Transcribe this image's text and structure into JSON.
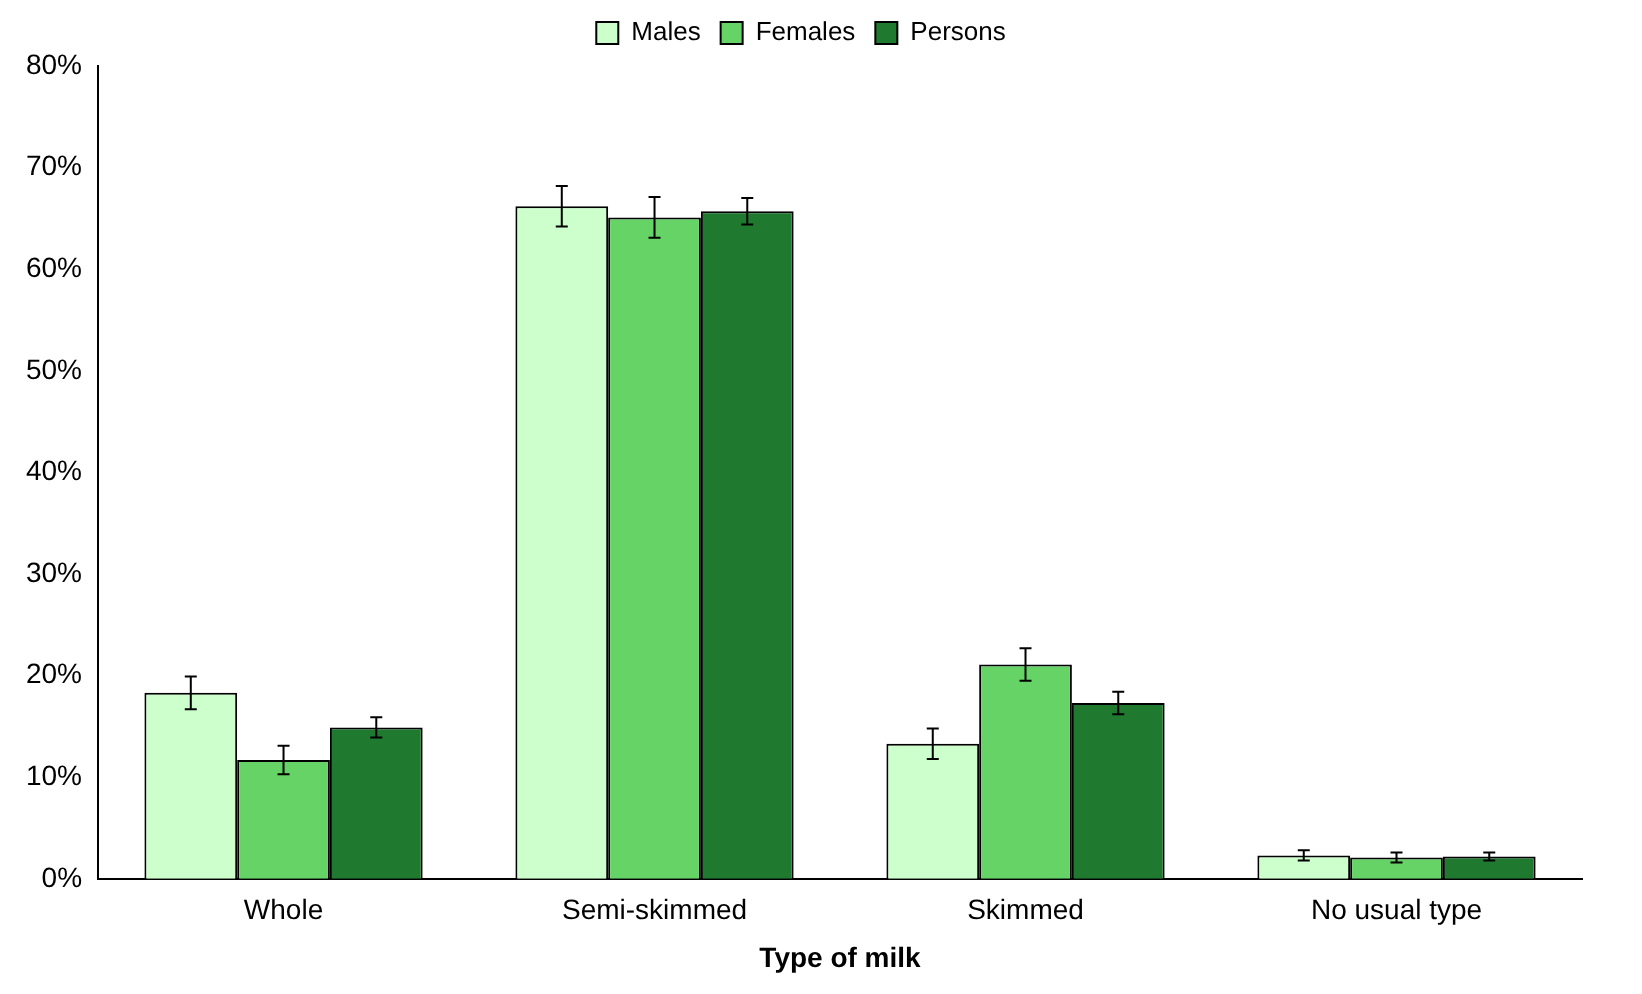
{
  "chart_data": {
    "type": "bar",
    "xlabel": "Type of milk",
    "categories": [
      "Whole",
      "Semi-skimmed",
      "Skimmed",
      "No usual type"
    ],
    "series": [
      {
        "name": "Males",
        "color": "#ccffcc",
        "values": [
          18.3,
          66.2,
          13.3,
          2.3
        ],
        "errors": [
          1.6,
          2.0,
          1.5,
          0.5
        ]
      },
      {
        "name": "Females",
        "color": "#66d366",
        "values": [
          11.7,
          65.1,
          21.1,
          2.1
        ],
        "errors": [
          1.4,
          2.0,
          1.6,
          0.5
        ]
      },
      {
        "name": "Persons",
        "color": "#1f7a2f",
        "values": [
          14.9,
          65.7,
          17.3,
          2.2
        ],
        "errors": [
          1.0,
          1.3,
          1.1,
          0.4
        ]
      }
    ],
    "ylim": [
      0,
      80
    ],
    "yticks": [
      {
        "value": 0,
        "label": "0%"
      },
      {
        "value": 10,
        "label": "10%"
      },
      {
        "value": 20,
        "label": "20%"
      },
      {
        "value": 30,
        "label": "30%"
      },
      {
        "value": 40,
        "label": "40%"
      },
      {
        "value": 50,
        "label": "50%"
      },
      {
        "value": 60,
        "label": "60%"
      },
      {
        "value": 70,
        "label": "70%"
      },
      {
        "value": 80,
        "label": "80%"
      }
    ],
    "grid": false,
    "legend": "top"
  }
}
